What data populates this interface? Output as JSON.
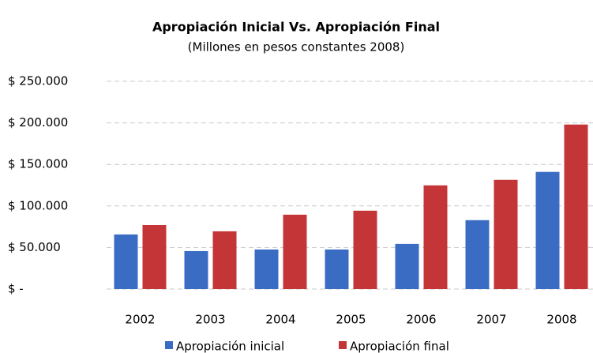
{
  "chart_data": {
    "type": "bar",
    "title": "Apropiación Inicial Vs. Apropiación Final",
    "subtitle": "(Millones en pesos constantes 2008)",
    "categories": [
      "2002",
      "2003",
      "2004",
      "2005",
      "2006",
      "2007",
      "2008"
    ],
    "series": [
      {
        "name": "Apropiación inicial",
        "color": "#3b6cc4",
        "values": [
          65700,
          45700,
          47600,
          47600,
          54300,
          82900,
          141000
        ]
      },
      {
        "name": "Apropiación final",
        "color": "#c43538",
        "values": [
          77000,
          69500,
          89500,
          94300,
          124800,
          131400,
          198000
        ]
      }
    ],
    "ylim": [
      0,
      250000
    ],
    "yticks": [
      {
        "value": 0,
        "label": "$ -"
      },
      {
        "value": 50000,
        "label": "$ 50.000"
      },
      {
        "value": 100000,
        "label": "$ 100.000"
      },
      {
        "value": 150000,
        "label": "$ 150.000"
      },
      {
        "value": 200000,
        "label": "$ 200.000"
      },
      {
        "value": 250000,
        "label": "$ 250.000"
      }
    ],
    "grid": true,
    "legend": "bottom"
  }
}
